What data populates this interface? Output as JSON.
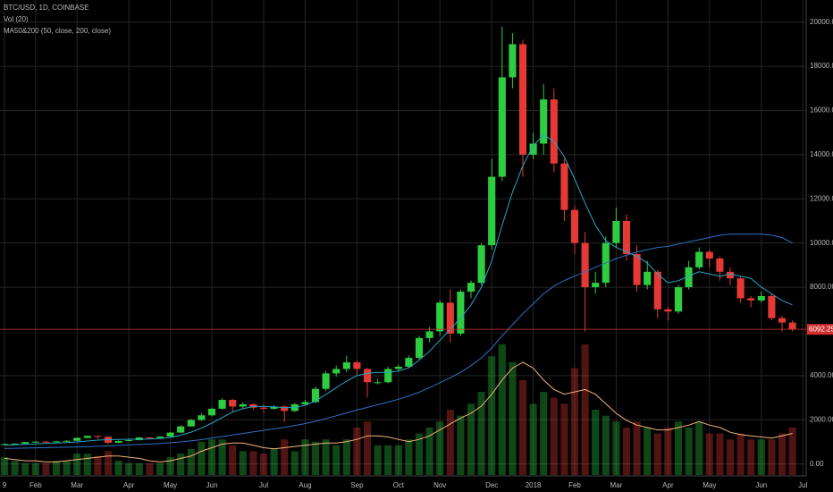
{
  "chart_data": {
    "type": "candlestick",
    "title": "BTC/USD, 1D, COINBASE",
    "indicators": [
      "Vol (20)",
      "MA50&200 (50, close, 200, close)"
    ],
    "categories": [
      "9",
      null,
      null,
      "Feb",
      null,
      null,
      null,
      "Mar",
      null,
      null,
      null,
      null,
      "Apr",
      null,
      null,
      null,
      "May",
      null,
      null,
      null,
      "Jun",
      null,
      null,
      null,
      null,
      "Jul",
      null,
      null,
      null,
      "Aug",
      null,
      null,
      null,
      null,
      "Sep",
      null,
      null,
      null,
      "Oct",
      null,
      null,
      null,
      "Nov",
      null,
      null,
      null,
      null,
      "Dec",
      null,
      null,
      null,
      "2018",
      null,
      null,
      null,
      "Feb",
      null,
      null,
      null,
      "Mar",
      null,
      null,
      null,
      null,
      "Apr",
      null,
      null,
      null,
      "May",
      null,
      null,
      null,
      null,
      "Jun",
      null,
      null,
      null,
      "Jul"
    ],
    "open": [
      880,
      900,
      920,
      990,
      1010,
      1000,
      1020,
      1050,
      1180,
      1270,
      1230,
      960,
      1040,
      1080,
      1200,
      1180,
      1240,
      1420,
      1700,
      1990,
      2200,
      2500,
      2900,
      2600,
      2700,
      2550,
      2500,
      2600,
      2400,
      2700,
      2800,
      3400,
      4100,
      4300,
      4600,
      4300,
      3700,
      3700,
      4300,
      4400,
      4800,
      5700,
      6000,
      7300,
      5900,
      7800,
      8200,
      9900,
      13000,
      17500,
      19000,
      14000,
      14500,
      16500,
      13600,
      11500,
      10000,
      8000,
      8200,
      10000,
      11000,
      9500,
      8100,
      8700,
      7000,
      6900,
      8000,
      8900,
      9600,
      9300,
      8700,
      8400,
      7500,
      7400,
      7600,
      6600,
      6400,
      null
    ],
    "high": [
      930,
      940,
      1000,
      1030,
      1040,
      1050,
      1070,
      1200,
      1290,
      1280,
      1240,
      1060,
      1100,
      1210,
      1220,
      1260,
      1450,
      1750,
      2050,
      2300,
      2550,
      2980,
      2950,
      2800,
      2750,
      2700,
      2650,
      2650,
      2750,
      2900,
      3500,
      4200,
      4450,
      4900,
      4700,
      4350,
      3850,
      4400,
      4500,
      4900,
      5800,
      6200,
      7400,
      7900,
      7900,
      8300,
      10000,
      13800,
      19800,
      19500,
      19200,
      15000,
      17200,
      17000,
      13800,
      11700,
      10500,
      8700,
      10300,
      11600,
      11300,
      9900,
      9200,
      8800,
      7100,
      8100,
      9200,
      9800,
      9700,
      9400,
      8900,
      8500,
      7600,
      7800,
      7700,
      6700,
      6500,
      null
    ],
    "low": [
      860,
      880,
      910,
      970,
      960,
      980,
      1000,
      1040,
      1160,
      1130,
      900,
      940,
      1020,
      1060,
      1150,
      1160,
      1220,
      1400,
      1680,
      1950,
      2150,
      2450,
      2350,
      2500,
      2450,
      2300,
      2450,
      1900,
      2350,
      2650,
      2750,
      3300,
      3950,
      4150,
      4000,
      3000,
      3600,
      3650,
      4200,
      4350,
      4700,
      5500,
      5800,
      5500,
      5800,
      7500,
      8100,
      9700,
      12800,
      17000,
      13000,
      13800,
      14000,
      13200,
      11000,
      9500,
      6000,
      7700,
      8000,
      9800,
      9200,
      7800,
      7900,
      6600,
      6500,
      6800,
      7900,
      8800,
      8900,
      8300,
      8100,
      7300,
      7100,
      7300,
      6500,
      6000,
      6000,
      null
    ],
    "close": [
      900,
      920,
      990,
      1010,
      1000,
      1020,
      1050,
      1180,
      1270,
      1230,
      960,
      1040,
      1080,
      1200,
      1180,
      1240,
      1420,
      1700,
      1990,
      2200,
      2500,
      2900,
      2600,
      2700,
      2550,
      2500,
      2600,
      2400,
      2700,
      2800,
      3400,
      4100,
      4300,
      4600,
      4300,
      3700,
      3700,
      4300,
      4400,
      4800,
      5700,
      6000,
      7300,
      5900,
      7800,
      8200,
      9900,
      13000,
      17500,
      19000,
      14000,
      14500,
      16500,
      13600,
      11500,
      10000,
      8000,
      8200,
      10000,
      11000,
      9500,
      8100,
      8700,
      7000,
      6900,
      8000,
      8900,
      9600,
      9300,
      8700,
      8400,
      7500,
      7400,
      7600,
      6600,
      6400,
      6100,
      null
    ],
    "up_color": "#2ecc40",
    "down_color": "#e53935",
    "lines": [
      {
        "color": "#29a3c9",
        "values": [
          850,
          870,
          890,
          910,
          930,
          950,
          970,
          1000,
          1040,
          1080,
          1100,
          1110,
          1120,
          1120,
          1130,
          1150,
          1200,
          1300,
          1440,
          1620,
          1850,
          2100,
          2350,
          2500,
          2600,
          2600,
          2580,
          2550,
          2560,
          2650,
          2850,
          3150,
          3450,
          3750,
          4000,
          4100,
          4150,
          4150,
          4200,
          4350,
          4700,
          5100,
          5600,
          6100,
          6600,
          7200,
          8000,
          9200,
          10800,
          12300,
          13500,
          14400,
          14900,
          14600,
          13900,
          12900,
          11800,
          10800,
          10100,
          9800,
          9600,
          9400,
          9100,
          8600,
          8200,
          8300,
          8500,
          8700,
          8600,
          8500,
          8600,
          8500,
          8400,
          8000,
          7700,
          7400,
          7200,
          null
        ]
      },
      {
        "color": "#2f6fc4",
        "values": [
          700,
          710,
          720,
          730,
          740,
          750,
          760,
          770,
          780,
          800,
          820,
          840,
          860,
          880,
          900,
          930,
          960,
          1000,
          1050,
          1100,
          1170,
          1240,
          1310,
          1380,
          1450,
          1520,
          1590,
          1660,
          1740,
          1830,
          1930,
          2050,
          2180,
          2310,
          2440,
          2560,
          2680,
          2800,
          2930,
          3080,
          3250,
          3450,
          3680,
          3900,
          4150,
          4450,
          4800,
          5250,
          5800,
          6300,
          6800,
          7250,
          7700,
          8050,
          8300,
          8500,
          8700,
          8900,
          9100,
          9300,
          9450,
          9600,
          9700,
          9800,
          9850,
          9950,
          10050,
          10150,
          10250,
          10350,
          10400,
          10400,
          10400,
          10400,
          10350,
          10250,
          10000,
          null
        ]
      }
    ],
    "volume": {
      "values": [
        15,
        12,
        10,
        10,
        10,
        12,
        12,
        18,
        18,
        16,
        20,
        12,
        10,
        10,
        10,
        10,
        15,
        18,
        22,
        28,
        30,
        30,
        25,
        20,
        20,
        18,
        22,
        30,
        20,
        30,
        28,
        30,
        25,
        30,
        40,
        45,
        25,
        25,
        25,
        30,
        35,
        40,
        45,
        55,
        50,
        60,
        70,
        100,
        110,
        95,
        80,
        60,
        70,
        65,
        60,
        90,
        110,
        55,
        50,
        45,
        40,
        45,
        40,
        35,
        40,
        45,
        40,
        45,
        35,
        35,
        30,
        35,
        30,
        30,
        30,
        35,
        40,
        null
      ],
      "ma": [
        14,
        13,
        12,
        12,
        11,
        11,
        12,
        13,
        14,
        15,
        16,
        16,
        15,
        14,
        12,
        11,
        12,
        14,
        16,
        20,
        23,
        26,
        27,
        27,
        25,
        23,
        22,
        23,
        24,
        25,
        26,
        27,
        27,
        28,
        30,
        33,
        33,
        32,
        30,
        28,
        30,
        33,
        38,
        43,
        48,
        52,
        58,
        68,
        80,
        90,
        95,
        90,
        80,
        72,
        68,
        70,
        72,
        68,
        60,
        52,
        46,
        42,
        40,
        38,
        38,
        40,
        42,
        45,
        42,
        40,
        36,
        34,
        33,
        32,
        31,
        33,
        35,
        null
      ],
      "ma_color": "#f0b27a"
    },
    "y2lim": [
      0,
      400
    ],
    "last_price": 6092.25,
    "last_price_color": "#d32f2f",
    "ylim": [
      -500,
      21000
    ],
    "yticks": [
      {
        "value": 0,
        "label": "0.00"
      },
      {
        "value": 2000,
        "label": "2000.00"
      },
      {
        "value": 4000,
        "label": "4000.00"
      },
      {
        "value": 8000,
        "label": "8000.00"
      },
      {
        "value": 10000,
        "label": "10000.00"
      },
      {
        "value": 12000,
        "label": "12000.00"
      },
      {
        "value": 14000,
        "label": "14000.00"
      },
      {
        "value": 16000,
        "label": "16000.00"
      },
      {
        "value": 18000,
        "label": "18000.00"
      },
      {
        "value": 20000,
        "label": "20000.00"
      }
    ],
    "grid": true
  }
}
